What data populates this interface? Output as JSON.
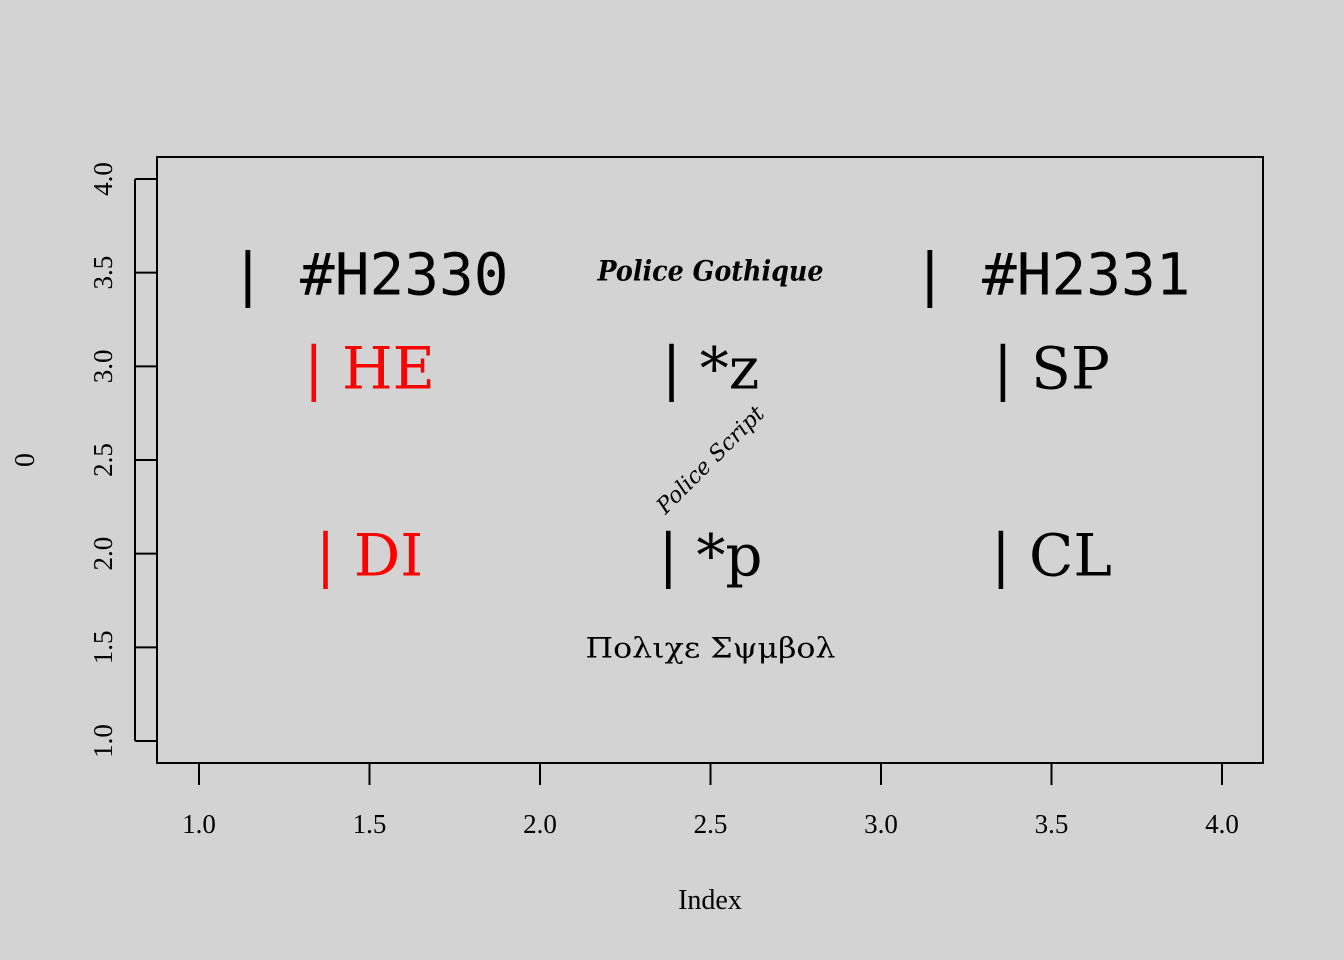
{
  "chart_data": {
    "type": "scatter",
    "title": "",
    "xlabel": "Index",
    "ylabel": "0",
    "xlim": [
      0.88,
      4.12
    ],
    "ylim": [
      0.88,
      4.12
    ],
    "xticks": [
      "1.0",
      "1.5",
      "2.0",
      "2.5",
      "3.0",
      "3.5",
      "4.0"
    ],
    "yticks": [
      "1.0",
      "1.5",
      "2.0",
      "2.5",
      "3.0",
      "3.5",
      "4.0"
    ],
    "grid": false,
    "background": "#d3d3d3",
    "labels": [
      {
        "text": "| #H2330",
        "x": 1.5,
        "y": 3.5,
        "color": "#000000",
        "style": "big-mono"
      },
      {
        "text": "Police Gothique",
        "x": 2.5,
        "y": 3.5,
        "color": "#000000",
        "style": "gothic"
      },
      {
        "text": "| #H2331",
        "x": 3.5,
        "y": 3.5,
        "color": "#000000",
        "style": "big-mono"
      },
      {
        "text": "| HE",
        "x": 1.5,
        "y": 3.0,
        "color": "#ff0000",
        "style": "big"
      },
      {
        "text": "| *z",
        "x": 2.5,
        "y": 3.0,
        "color": "#000000",
        "style": "big"
      },
      {
        "text": "| SP",
        "x": 3.5,
        "y": 3.0,
        "color": "#000000",
        "style": "big"
      },
      {
        "text": "Police Script",
        "x": 2.5,
        "y": 2.5,
        "color": "#000000",
        "style": "script"
      },
      {
        "text": "| DI",
        "x": 1.5,
        "y": 2.0,
        "color": "#ff0000",
        "style": "big"
      },
      {
        "text": "| *p",
        "x": 2.5,
        "y": 2.0,
        "color": "#000000",
        "style": "big"
      },
      {
        "text": "| CL",
        "x": 3.5,
        "y": 2.0,
        "color": "#000000",
        "style": "big"
      },
      {
        "text": "Πολιχε Σψμβολ",
        "x": 2.5,
        "y": 1.5,
        "color": "#000000",
        "style": "symbol"
      }
    ]
  }
}
